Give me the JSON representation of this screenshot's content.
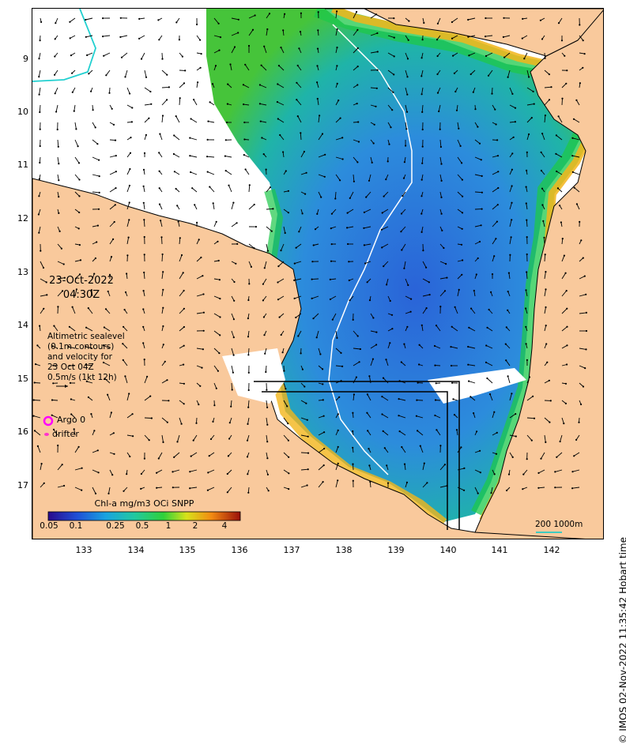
{
  "map": {
    "date": "23-Oct-2022",
    "time": "04:30Z",
    "legend_lines": [
      "Altimetric sealevel",
      "(0.1m contours)",
      "and velocity for",
      "23 Oct 04Z",
      "0.5m/s (1kt 12h)"
    ],
    "argo_label": "Argo 0",
    "drifter_label": "drifter",
    "credit": "© IMOS 02-Nov-2022 11:35:42 Hobart time",
    "colorbar_title": "Chl-a mg/m3 OCi SNPP",
    "colorbar_ticks": [
      "0.05",
      "0.1",
      "0.25",
      "0.5",
      "1",
      "2",
      "4"
    ],
    "scale_label": "200  1000m",
    "y_ticks": [
      "9",
      "10",
      "11",
      "12",
      "13",
      "14",
      "15",
      "16",
      "17"
    ],
    "x_ticks": [
      "133",
      "134",
      "135",
      "136",
      "137",
      "138",
      "139",
      "140",
      "141",
      "142"
    ],
    "colors": {
      "land": "#f9c99c",
      "argo": "#ff00ff",
      "drifter": "#ff33cc",
      "scale": "#00cccc"
    }
  }
}
